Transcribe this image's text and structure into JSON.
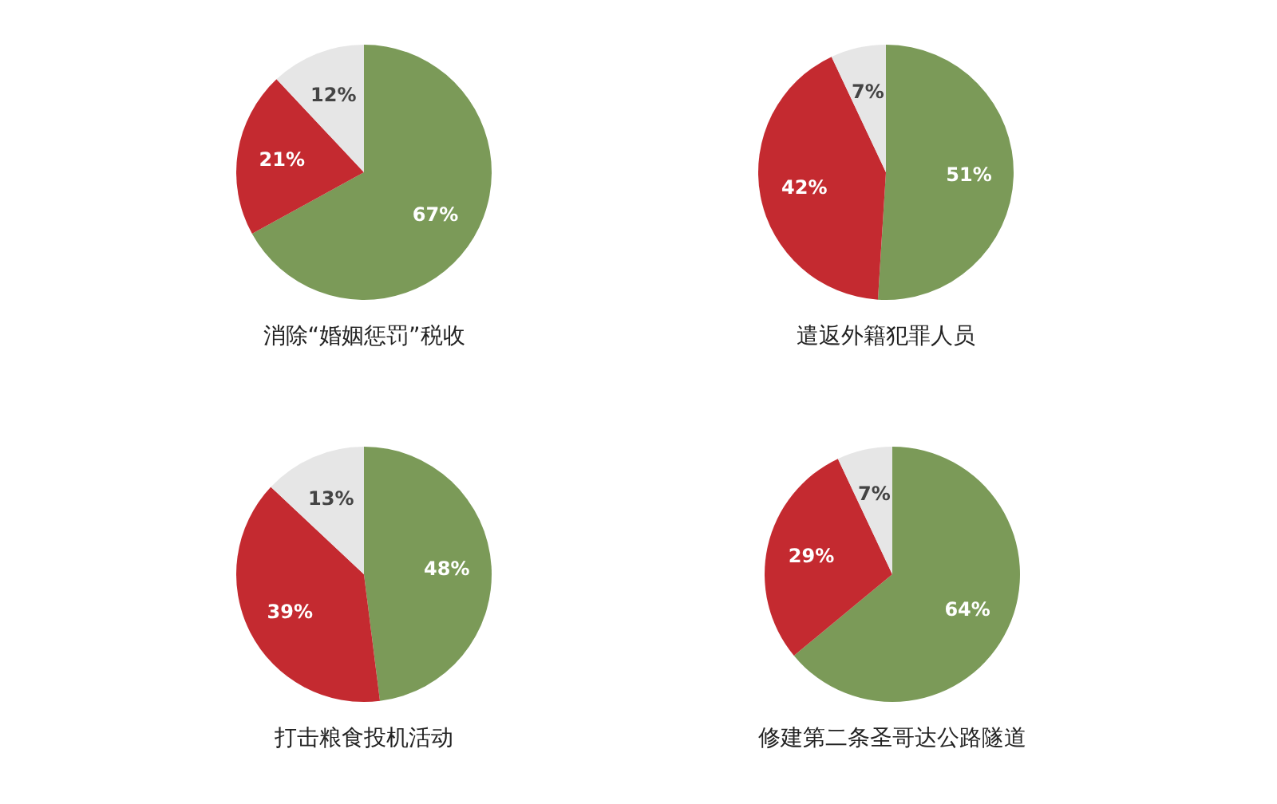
{
  "chart_data": [
    {
      "type": "pie",
      "title": "消除“婚姻惩罚”税收",
      "categories": [
        null,
        null,
        null
      ],
      "values": [
        67,
        21,
        12
      ],
      "value_labels": [
        "67%",
        "21%",
        "12%"
      ],
      "colors": [
        "#7b9a58",
        "#c42a30",
        "#e6e6e6"
      ]
    },
    {
      "type": "pie",
      "title": "遣返外籍犯罪人员",
      "categories": [
        null,
        null,
        null
      ],
      "values": [
        51,
        42,
        7
      ],
      "value_labels": [
        "51%",
        "42%",
        "7%"
      ],
      "colors": [
        "#7b9a58",
        "#c42a30",
        "#e6e6e6"
      ]
    },
    {
      "type": "pie",
      "title": "打击粮食投机活动",
      "categories": [
        null,
        null,
        null
      ],
      "values": [
        48,
        39,
        13
      ],
      "value_labels": [
        "48%",
        "39%",
        "13%"
      ],
      "colors": [
        "#7b9a58",
        "#c42a30",
        "#e6e6e6"
      ]
    },
    {
      "type": "pie",
      "title": "修建第二条圣哥达公路隧道",
      "categories": [
        null,
        null,
        null
      ],
      "values": [
        64,
        29,
        7
      ],
      "value_labels": [
        "64%",
        "29%",
        "7%"
      ],
      "colors": [
        "#7b9a58",
        "#c42a30",
        "#e6e6e6"
      ]
    }
  ]
}
